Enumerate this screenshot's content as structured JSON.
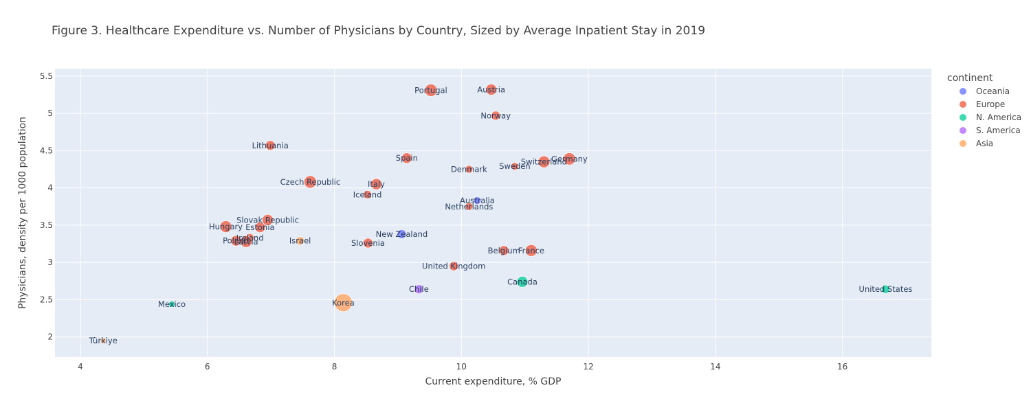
{
  "chart_data": {
    "type": "scatter",
    "title": "Figure 3. Healthcare Expenditure vs. Number of Physicians by Country, Sized by Average Inpatient Stay in 2019",
    "xlabel": "Current expenditure, % GDP",
    "ylabel": "Physicians, density per 1000 population",
    "xlim": [
      3.6,
      17.4
    ],
    "ylim": [
      1.73,
      5.6
    ],
    "xticks": [
      4,
      6,
      8,
      10,
      12,
      14,
      16
    ],
    "yticks": [
      2,
      2.5,
      3,
      3.5,
      4,
      4.5,
      5,
      5.5
    ],
    "ytick_labels": [
      "2",
      "2.5",
      "3",
      "3.5",
      "4",
      "4.5",
      "5",
      "5.5"
    ],
    "grid": true,
    "legend_position": "right",
    "legend_title": "continent",
    "series": [
      {
        "name": "Oceania",
        "color": "#636efa",
        "points": [
          {
            "label": "Australia",
            "x": 10.25,
            "y": 3.83,
            "size": 5.5
          },
          {
            "label": "New Zealand",
            "x": 9.06,
            "y": 3.38,
            "size": 6.5
          }
        ]
      },
      {
        "name": "Europe",
        "color": "#ef553b",
        "points": [
          {
            "label": "Portugal",
            "x": 9.52,
            "y": 5.31,
            "size": 9.0
          },
          {
            "label": "Austria",
            "x": 10.47,
            "y": 5.32,
            "size": 8.0
          },
          {
            "label": "Norway",
            "x": 10.54,
            "y": 4.97,
            "size": 6.5
          },
          {
            "label": "Lithuania",
            "x": 6.99,
            "y": 4.57,
            "size": 7.0
          },
          {
            "label": "Spain",
            "x": 9.14,
            "y": 4.4,
            "size": 7.5
          },
          {
            "label": "Germany",
            "x": 11.7,
            "y": 4.39,
            "size": 8.8
          },
          {
            "label": "Switzerland",
            "x": 11.3,
            "y": 4.35,
            "size": 8.5
          },
          {
            "label": "Sweden",
            "x": 10.84,
            "y": 4.29,
            "size": 5.5
          },
          {
            "label": "Denmark",
            "x": 10.12,
            "y": 4.25,
            "size": 5.5
          },
          {
            "label": "Czech Republic",
            "x": 7.62,
            "y": 4.08,
            "size": 9.0
          },
          {
            "label": "Italy",
            "x": 8.66,
            "y": 4.05,
            "size": 8.0
          },
          {
            "label": "Iceland",
            "x": 8.52,
            "y": 3.91,
            "size": 6.0
          },
          {
            "label": "Netherlands",
            "x": 10.12,
            "y": 3.75,
            "size": 5.5
          },
          {
            "label": "Slovak Republic",
            "x": 6.95,
            "y": 3.57,
            "size": 8.0
          },
          {
            "label": "Hungary",
            "x": 6.29,
            "y": 3.48,
            "size": 8.5
          },
          {
            "label": "Estonia",
            "x": 6.83,
            "y": 3.47,
            "size": 7.5
          },
          {
            "label": "Ireland",
            "x": 6.67,
            "y": 3.33,
            "size": 6.0
          },
          {
            "label": "Poland",
            "x": 6.45,
            "y": 3.29,
            "size": 7.5
          },
          {
            "label": "Latvia",
            "x": 6.61,
            "y": 3.28,
            "size": 8.5
          },
          {
            "label": "Slovenia",
            "x": 8.53,
            "y": 3.26,
            "size": 7.0
          },
          {
            "label": "Belgium",
            "x": 10.67,
            "y": 3.16,
            "size": 7.0
          },
          {
            "label": "France",
            "x": 11.1,
            "y": 3.16,
            "size": 8.5
          },
          {
            "label": "United Kingdom",
            "x": 9.88,
            "y": 2.95,
            "size": 6.5
          }
        ]
      },
      {
        "name": "N. America",
        "color": "#00cc96",
        "points": [
          {
            "label": "Canada",
            "x": 10.96,
            "y": 2.74,
            "size": 8.0
          },
          {
            "label": "United States",
            "x": 16.68,
            "y": 2.64,
            "size": 6.0
          },
          {
            "label": "Mexico",
            "x": 5.44,
            "y": 2.44,
            "size": 4.5
          }
        ]
      },
      {
        "name": "S. America",
        "color": "#ab63fa",
        "points": [
          {
            "label": "Chile",
            "x": 9.33,
            "y": 2.64,
            "size": 6.5
          }
        ]
      },
      {
        "name": "Asia",
        "color": "#ffa15a",
        "points": [
          {
            "label": "Israel",
            "x": 7.46,
            "y": 3.29,
            "size": 6.0
          },
          {
            "label": "Korea",
            "x": 8.14,
            "y": 2.46,
            "size": 13.0
          },
          {
            "label": "Türkiye",
            "x": 4.36,
            "y": 1.95,
            "size": 4.0
          }
        ]
      }
    ]
  }
}
